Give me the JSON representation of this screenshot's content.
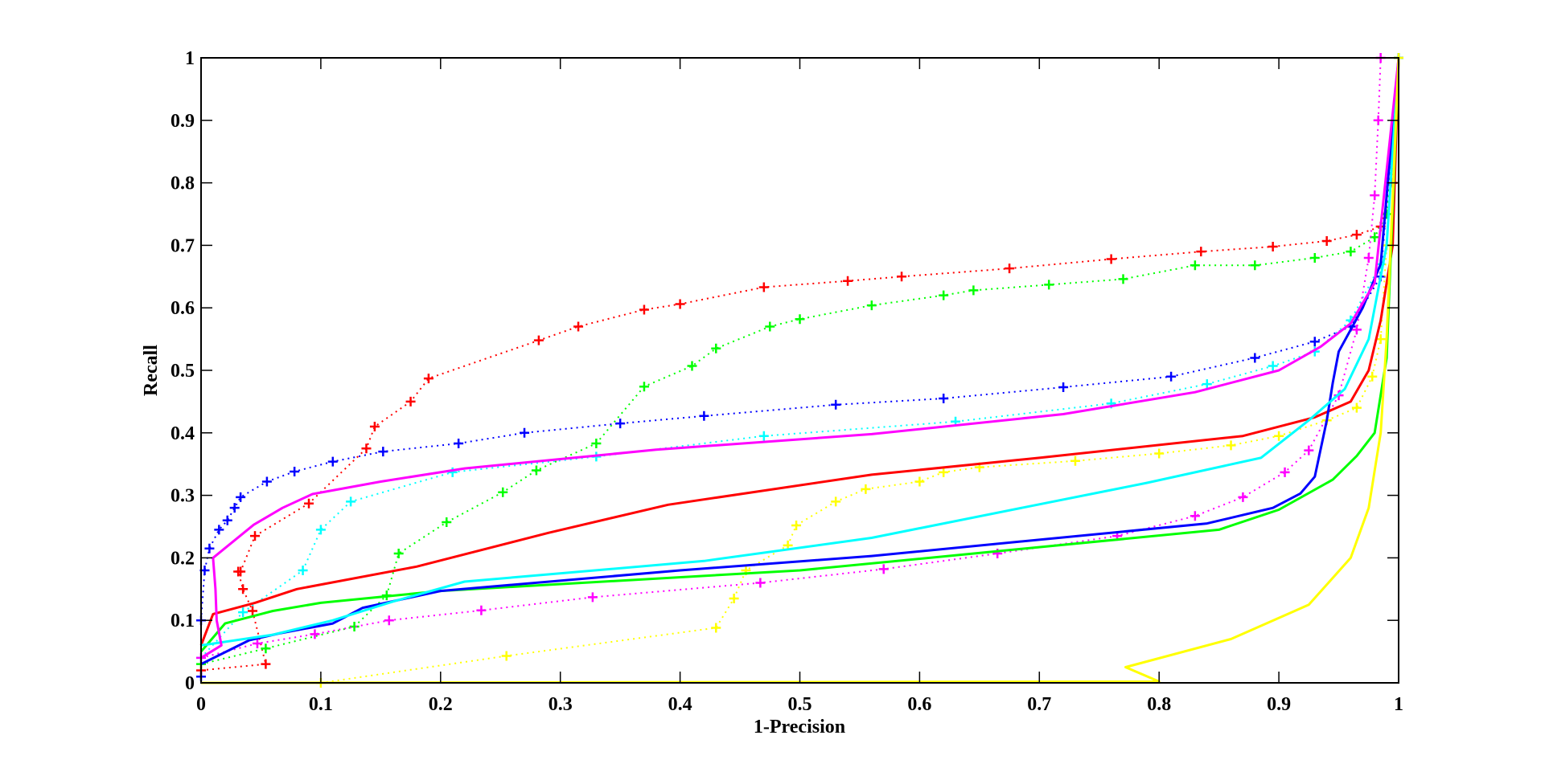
{
  "chart_data": {
    "type": "line",
    "title": "",
    "xlabel": "1-Precision",
    "ylabel": "Recall",
    "xlim": [
      0,
      1
    ],
    "ylim": [
      0,
      1
    ],
    "grid": false,
    "legend": null,
    "xticks": [
      "0",
      "0.1",
      "0.2",
      "0.3",
      "0.4",
      "0.5",
      "0.6",
      "0.7",
      "0.8",
      "0.9",
      "1"
    ],
    "yticks": [
      "0",
      "0.1",
      "0.2",
      "0.3",
      "0.4",
      "0.5",
      "0.6",
      "0.7",
      "0.8",
      "0.9",
      "1"
    ],
    "series": [
      {
        "name": "red dotted +",
        "color": "#ff0000",
        "style": "dotted",
        "marker": "+",
        "x": [
          0.0,
          0.054,
          0.043,
          0.035,
          0.031,
          0.033,
          0.045,
          0.09,
          0.138,
          0.145,
          0.175,
          0.19,
          0.282,
          0.315,
          0.37,
          0.4,
          0.47,
          0.54,
          0.585,
          0.675,
          0.76,
          0.835,
          0.895,
          0.94,
          0.965,
          0.985,
          0.995,
          1.0
        ],
        "y": [
          0.02,
          0.03,
          0.115,
          0.15,
          0.178,
          0.178,
          0.235,
          0.287,
          0.375,
          0.41,
          0.45,
          0.487,
          0.548,
          0.57,
          0.597,
          0.606,
          0.633,
          0.643,
          0.65,
          0.663,
          0.678,
          0.69,
          0.698,
          0.707,
          0.717,
          0.73,
          0.8,
          1.0
        ]
      },
      {
        "name": "green dotted +",
        "color": "#00ff00",
        "style": "dotted",
        "marker": "+",
        "x": [
          0.0,
          0.054,
          0.128,
          0.155,
          0.165,
          0.205,
          0.252,
          0.28,
          0.33,
          0.37,
          0.41,
          0.43,
          0.475,
          0.5,
          0.56,
          0.62,
          0.645,
          0.708,
          0.77,
          0.83,
          0.88,
          0.93,
          0.96,
          0.98,
          0.99,
          1.0
        ],
        "y": [
          0.03,
          0.055,
          0.09,
          0.14,
          0.207,
          0.257,
          0.305,
          0.34,
          0.383,
          0.474,
          0.507,
          0.535,
          0.57,
          0.582,
          0.604,
          0.62,
          0.628,
          0.637,
          0.646,
          0.668,
          0.668,
          0.68,
          0.69,
          0.713,
          0.75,
          1.0
        ]
      },
      {
        "name": "blue dotted +",
        "color": "#0000ff",
        "style": "dotted",
        "marker": "+",
        "x": [
          0.0,
          0.0,
          0.003,
          0.007,
          0.015,
          0.022,
          0.028,
          0.033,
          0.055,
          0.078,
          0.11,
          0.152,
          0.215,
          0.27,
          0.35,
          0.42,
          0.53,
          0.62,
          0.72,
          0.81,
          0.88,
          0.93,
          0.96,
          0.985,
          1.0
        ],
        "y": [
          0.01,
          0.1,
          0.18,
          0.215,
          0.245,
          0.26,
          0.28,
          0.297,
          0.322,
          0.338,
          0.354,
          0.37,
          0.383,
          0.4,
          0.415,
          0.427,
          0.445,
          0.455,
          0.473,
          0.49,
          0.52,
          0.546,
          0.57,
          0.65,
          1.0
        ]
      },
      {
        "name": "cyan dotted +",
        "color": "#00ffff",
        "style": "dotted",
        "marker": "+",
        "x": [
          0.0,
          0.035,
          0.085,
          0.1,
          0.125,
          0.21,
          0.33,
          0.47,
          0.63,
          0.76,
          0.84,
          0.895,
          0.93,
          0.96,
          0.985,
          1.0
        ],
        "y": [
          0.04,
          0.113,
          0.18,
          0.245,
          0.29,
          0.337,
          0.362,
          0.395,
          0.418,
          0.447,
          0.478,
          0.507,
          0.53,
          0.58,
          0.67,
          1.0
        ]
      },
      {
        "name": "magenta dotted +",
        "color": "#ff00ff",
        "style": "dotted",
        "marker": "+",
        "x": [
          0.0,
          0.047,
          0.095,
          0.157,
          0.234,
          0.327,
          0.467,
          0.57,
          0.665,
          0.765,
          0.83,
          0.87,
          0.905,
          0.925,
          0.95,
          0.965,
          0.975,
          0.98,
          0.983,
          0.985
        ],
        "y": [
          0.04,
          0.063,
          0.078,
          0.1,
          0.116,
          0.137,
          0.16,
          0.182,
          0.207,
          0.235,
          0.267,
          0.297,
          0.337,
          0.372,
          0.46,
          0.565,
          0.68,
          0.78,
          0.9,
          1.0
        ]
      },
      {
        "name": "yellow dotted +",
        "color": "#ffff00",
        "style": "dotted",
        "marker": "+",
        "x": [
          0.1,
          0.255,
          0.43,
          0.445,
          0.455,
          0.49,
          0.497,
          0.53,
          0.555,
          0.6,
          0.62,
          0.65,
          0.73,
          0.8,
          0.86,
          0.9,
          0.94,
          0.965,
          0.978,
          0.985,
          0.99,
          1.0
        ],
        "y": [
          0.0,
          0.043,
          0.088,
          0.135,
          0.18,
          0.22,
          0.252,
          0.29,
          0.31,
          0.322,
          0.337,
          0.345,
          0.355,
          0.367,
          0.38,
          0.395,
          0.42,
          0.44,
          0.49,
          0.55,
          0.7,
          1.0
        ]
      },
      {
        "name": "red solid",
        "color": "#ff0000",
        "style": "solid",
        "marker": "",
        "x": [
          0.0,
          0.01,
          0.045,
          0.08,
          0.18,
          0.29,
          0.39,
          0.56,
          0.7,
          0.87,
          0.93,
          0.96,
          0.975,
          0.985,
          0.995,
          1.0
        ],
        "y": [
          0.06,
          0.11,
          0.128,
          0.15,
          0.186,
          0.24,
          0.285,
          0.333,
          0.36,
          0.395,
          0.425,
          0.45,
          0.5,
          0.58,
          0.7,
          1.0
        ]
      },
      {
        "name": "green solid",
        "color": "#00ff00",
        "style": "solid",
        "marker": "",
        "x": [
          0.0,
          0.02,
          0.06,
          0.1,
          0.2,
          0.5,
          0.85,
          0.9,
          0.945,
          0.965,
          0.98,
          0.99,
          1.0
        ],
        "y": [
          0.05,
          0.095,
          0.115,
          0.128,
          0.147,
          0.18,
          0.245,
          0.277,
          0.325,
          0.363,
          0.4,
          0.52,
          1.0
        ]
      },
      {
        "name": "blue solid",
        "color": "#0000ff",
        "style": "solid",
        "marker": "",
        "x": [
          0.0,
          0.04,
          0.065,
          0.11,
          0.135,
          0.2,
          0.4,
          0.56,
          0.84,
          0.895,
          0.918,
          0.93,
          0.94,
          0.945,
          0.95,
          0.97,
          0.985,
          1.0
        ],
        "y": [
          0.03,
          0.068,
          0.079,
          0.095,
          0.12,
          0.147,
          0.18,
          0.203,
          0.255,
          0.28,
          0.303,
          0.33,
          0.42,
          0.48,
          0.53,
          0.6,
          0.67,
          1.0
        ]
      },
      {
        "name": "cyan solid",
        "color": "#00ffff",
        "style": "solid",
        "marker": "",
        "x": [
          0.0,
          0.06,
          0.11,
          0.16,
          0.22,
          0.42,
          0.56,
          0.79,
          0.885,
          0.925,
          0.955,
          0.975,
          0.99,
          1.0
        ],
        "y": [
          0.06,
          0.077,
          0.1,
          0.13,
          0.162,
          0.195,
          0.232,
          0.32,
          0.36,
          0.42,
          0.47,
          0.55,
          0.7,
          1.0
        ]
      },
      {
        "name": "magenta solid",
        "color": "#ff00ff",
        "style": "solid",
        "marker": "",
        "x": [
          0.0,
          0.017,
          0.013,
          0.012,
          0.01,
          0.044,
          0.068,
          0.093,
          0.15,
          0.22,
          0.38,
          0.56,
          0.72,
          0.83,
          0.9,
          0.935,
          0.96,
          0.98,
          1.0
        ],
        "y": [
          0.04,
          0.06,
          0.1,
          0.15,
          0.2,
          0.253,
          0.28,
          0.302,
          0.322,
          0.343,
          0.373,
          0.398,
          0.43,
          0.465,
          0.5,
          0.538,
          0.575,
          0.64,
          1.0
        ]
      },
      {
        "name": "yellow solid",
        "color": "#ffff00",
        "style": "solid",
        "marker": "",
        "x": [
          0.0,
          0.8,
          0.772,
          0.86,
          0.925,
          0.96,
          0.975,
          0.985,
          0.99,
          1.0
        ],
        "y": [
          0.0,
          0.002,
          0.025,
          0.07,
          0.125,
          0.2,
          0.28,
          0.4,
          0.55,
          1.0
        ]
      }
    ]
  }
}
